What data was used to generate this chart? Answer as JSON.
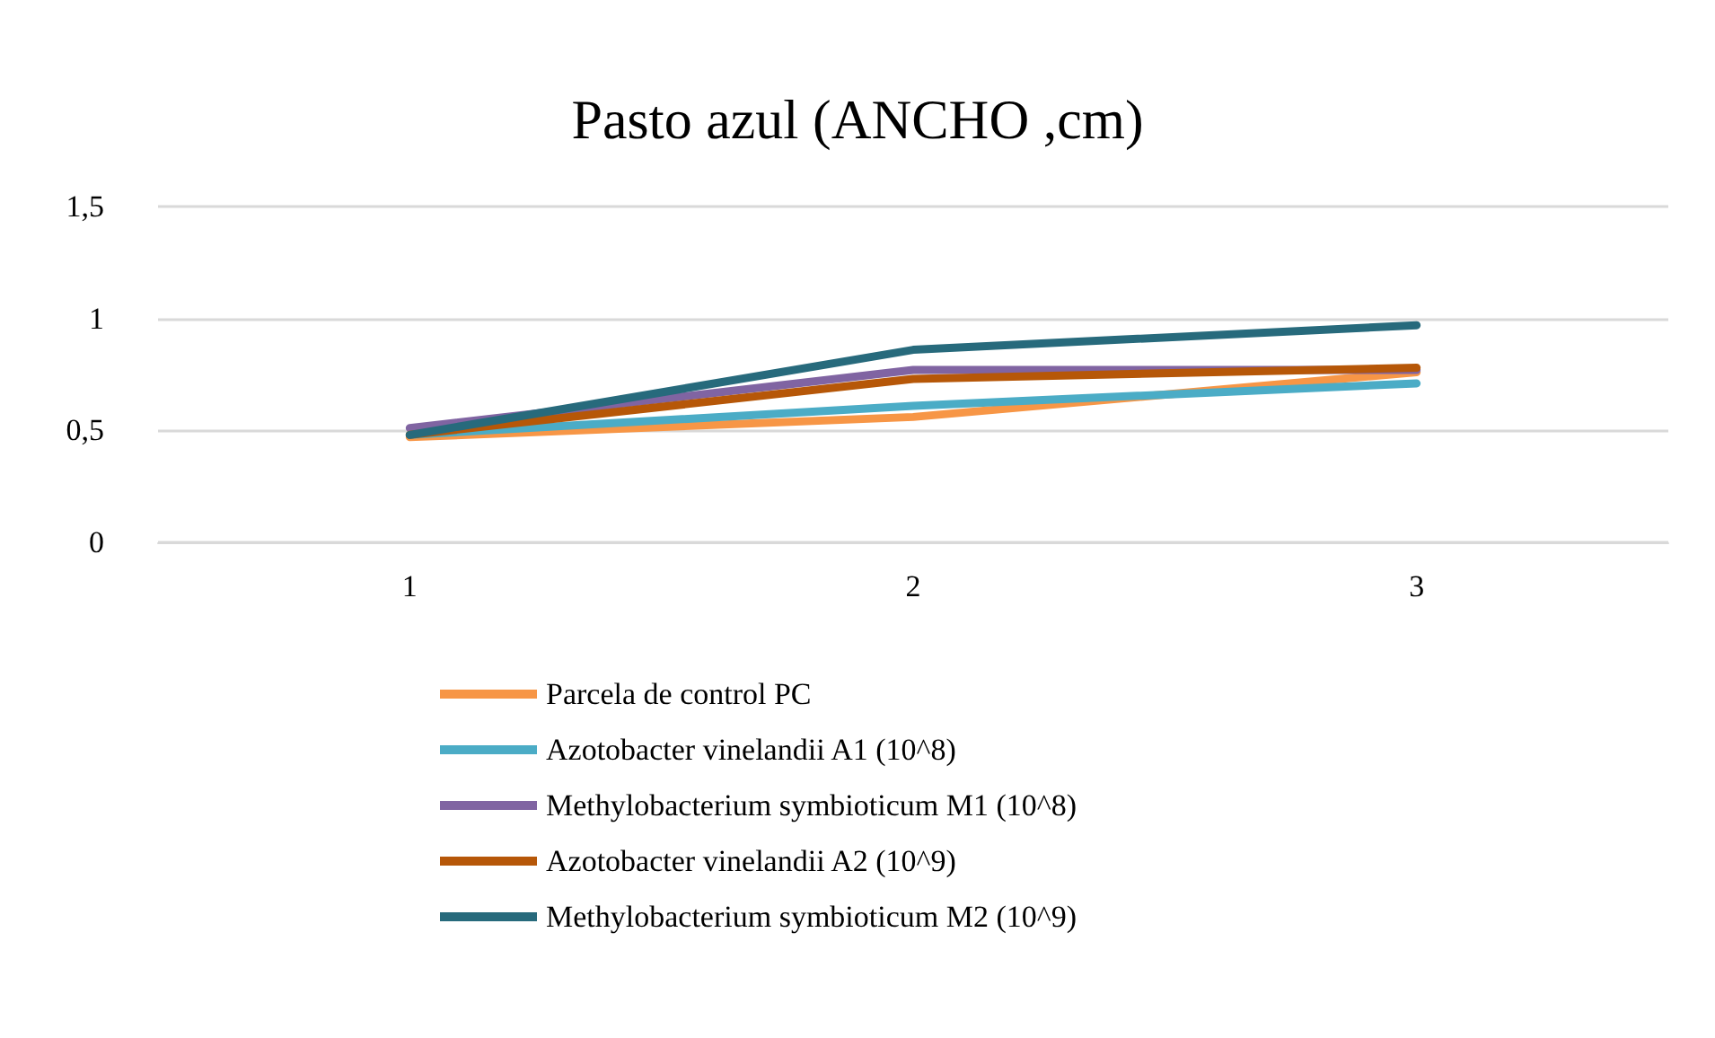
{
  "chart_data": {
    "type": "line",
    "title": "Pasto azul (ANCHO ,cm)",
    "categories": [
      "1",
      "2",
      "3"
    ],
    "ylim": [
      0,
      1.5
    ],
    "yticks": [
      {
        "value": 0,
        "label": "0"
      },
      {
        "value": 0.5,
        "label": "0,5"
      },
      {
        "value": 1,
        "label": "1"
      },
      {
        "value": 1.5,
        "label": "1,5"
      }
    ],
    "grid": "y",
    "legend": "bottom",
    "marker": "none",
    "line_style": "solid",
    "series": [
      {
        "name": "Parcela de control PC",
        "color": "#f79646",
        "values": [
          0.47,
          0.56,
          0.76
        ]
      },
      {
        "name": "Azotobacter vinelandii A1 (10^8)",
        "color": "#4bacc6",
        "values": [
          0.48,
          0.61,
          0.71
        ]
      },
      {
        "name": "Methylobacterium symbioticum M1 (10^8)",
        "color": "#8064a2",
        "values": [
          0.51,
          0.77,
          0.77
        ]
      },
      {
        "name": "Azotobacter vinelandii A2 (10^9)",
        "color": "#b65708",
        "values": [
          0.48,
          0.73,
          0.78
        ]
      },
      {
        "name": "Methylobacterium symbioticum M2 (10^9)",
        "color": "#276a7c",
        "values": [
          0.48,
          0.86,
          0.97
        ]
      }
    ]
  }
}
